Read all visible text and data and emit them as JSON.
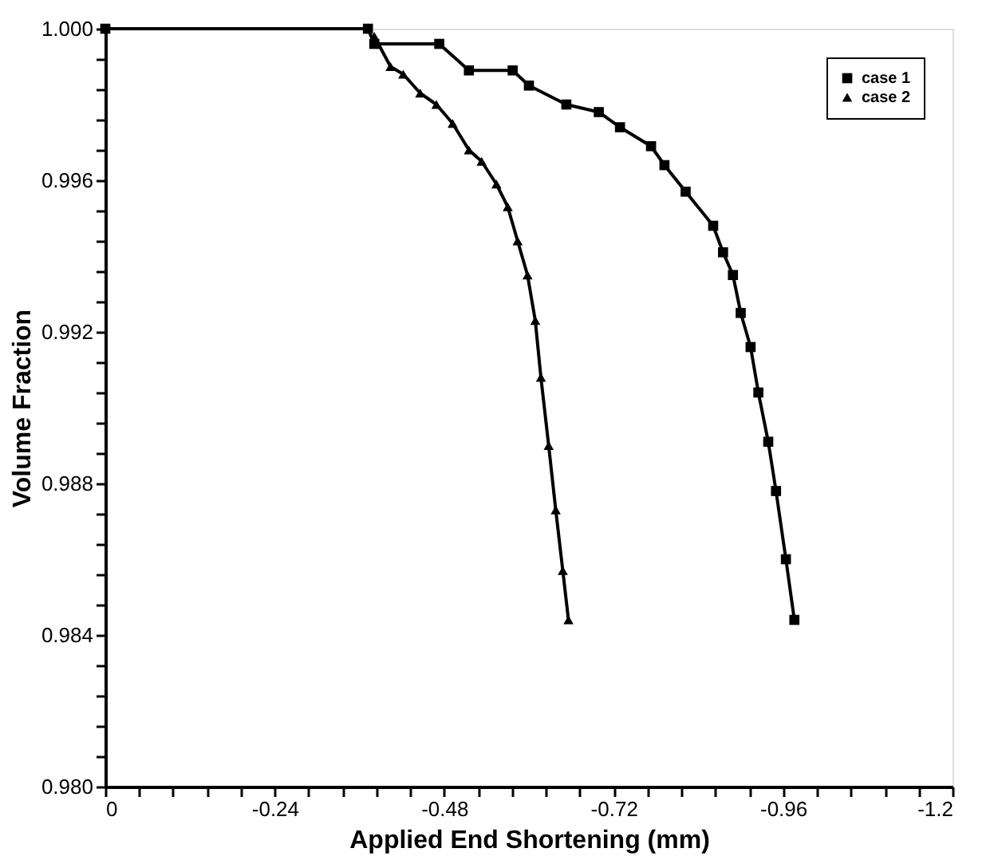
{
  "chart_data": {
    "type": "line",
    "xlabel": "Applied End Shortening (mm)",
    "ylabel": "Volume Fraction",
    "xlim": [
      0,
      -1.2
    ],
    "ylim": [
      0.98,
      1.0
    ],
    "xticks": [
      0,
      {
        "value": -0.048,
        "label": null
      },
      {
        "value": -0.096,
        "label": null
      },
      {
        "value": -0.144,
        "label": null
      },
      {
        "value": -0.192,
        "label": null
      },
      -0.24,
      {
        "value": -0.288,
        "label": null
      },
      {
        "value": -0.336,
        "label": null
      },
      {
        "value": -0.384,
        "label": null
      },
      {
        "value": -0.432,
        "label": null
      },
      -0.48,
      {
        "value": -0.528,
        "label": null
      },
      {
        "value": -0.576,
        "label": null
      },
      {
        "value": -0.624,
        "label": null
      },
      {
        "value": -0.672,
        "label": null
      },
      -0.72,
      {
        "value": -0.768,
        "label": null
      },
      {
        "value": -0.816,
        "label": null
      },
      {
        "value": -0.864,
        "label": null
      },
      {
        "value": -0.912,
        "label": null
      },
      -0.96,
      {
        "value": -1.008,
        "label": null
      },
      {
        "value": -1.056,
        "label": null
      },
      {
        "value": -1.104,
        "label": null
      },
      {
        "value": -1.152,
        "label": null
      },
      -1.2
    ],
    "yticks": [
      {
        "value": 0.98,
        "label": "0.980"
      },
      {
        "value": 0.9808,
        "label": null
      },
      {
        "value": 0.9816,
        "label": null
      },
      {
        "value": 0.9824,
        "label": null
      },
      {
        "value": 0.9832,
        "label": null
      },
      {
        "value": 0.984,
        "label": "0.984"
      },
      {
        "value": 0.9848,
        "label": null
      },
      {
        "value": 0.9856,
        "label": null
      },
      {
        "value": 0.9864,
        "label": null
      },
      {
        "value": 0.9872,
        "label": null
      },
      {
        "value": 0.988,
        "label": "0.988"
      },
      {
        "value": 0.9888,
        "label": null
      },
      {
        "value": 0.9896,
        "label": null
      },
      {
        "value": 0.9904,
        "label": null
      },
      {
        "value": 0.9912,
        "label": null
      },
      {
        "value": 0.992,
        "label": "0.992"
      },
      {
        "value": 0.9928,
        "label": null
      },
      {
        "value": 0.9936,
        "label": null
      },
      {
        "value": 0.9944,
        "label": null
      },
      {
        "value": 0.9952,
        "label": null
      },
      {
        "value": 0.996,
        "label": "0.996"
      },
      {
        "value": 0.9968,
        "label": null
      },
      {
        "value": 0.9976,
        "label": null
      },
      {
        "value": 0.9984,
        "label": null
      },
      {
        "value": 0.9992,
        "label": null
      },
      {
        "value": 1.0,
        "label": "1.000"
      }
    ],
    "grid": false,
    "legend": "top right",
    "line_style": "solid",
    "series": [
      {
        "name": "case 1",
        "color": "#000000",
        "marker": "square",
        "x": [
          0,
          -0.372,
          -0.381,
          -0.473,
          -0.515,
          -0.577,
          -0.6,
          -0.653,
          -0.699,
          -0.729,
          -0.773,
          -0.792,
          -0.822,
          -0.861,
          -0.875,
          -0.889,
          -0.9,
          -0.914,
          -0.925,
          -0.939,
          -0.95,
          -0.964,
          -0.976
        ],
        "values": [
          1.0,
          1.0,
          0.9996,
          0.9996,
          0.9989,
          0.9989,
          0.9985,
          0.998,
          0.9978,
          0.9974,
          0.9969,
          0.9964,
          0.9957,
          0.9948,
          0.9941,
          0.9935,
          0.9925,
          0.9916,
          0.9904,
          0.9891,
          0.9878,
          0.986,
          0.9844
        ]
      },
      {
        "name": "case 2",
        "color": "#000000",
        "marker": "triangle",
        "x": [
          -0.381,
          -0.404,
          -0.422,
          -0.446,
          -0.469,
          -0.492,
          -0.515,
          -0.533,
          -0.554,
          -0.57,
          -0.584,
          -0.598,
          -0.609,
          -0.617,
          -0.628,
          -0.638,
          -0.648,
          -0.656
        ],
        "values": [
          0.9998,
          0.999,
          0.9988,
          0.9983,
          0.998,
          0.9975,
          0.9968,
          0.9965,
          0.9959,
          0.9953,
          0.9944,
          0.9935,
          0.9923,
          0.9908,
          0.989,
          0.9873,
          0.9857,
          0.9844
        ]
      }
    ]
  }
}
